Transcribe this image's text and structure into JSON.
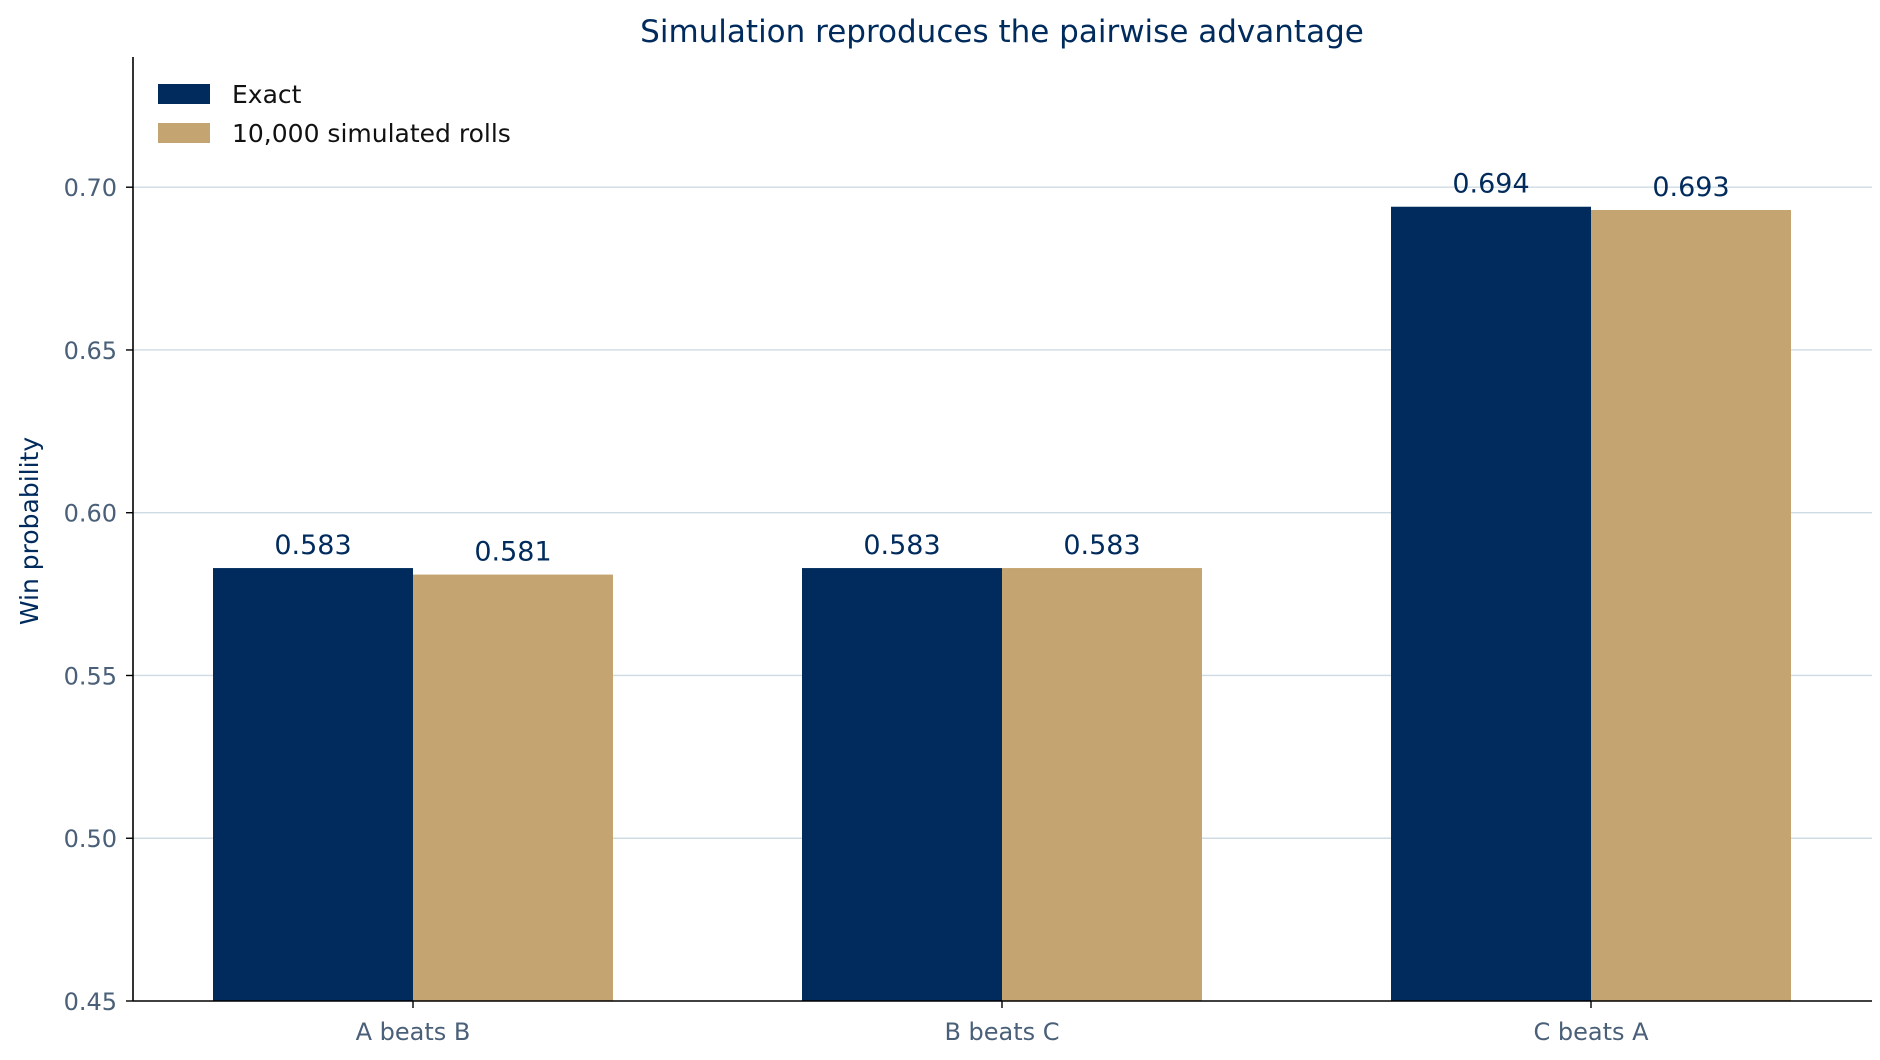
{
  "chart_data": {
    "type": "bar",
    "title": "Simulation reproduces the pairwise advantage",
    "ylabel": "Win probability",
    "xlabel": "",
    "categories": [
      "A beats B",
      "B beats C",
      "C beats A"
    ],
    "series": [
      {
        "name": "Exact",
        "values": [
          0.583,
          0.583,
          0.694
        ],
        "labels": [
          "0.583",
          "0.583",
          "0.694"
        ],
        "color": "#002b5c"
      },
      {
        "name": "10,000 simulated rolls",
        "values": [
          0.581,
          0.583,
          0.693
        ],
        "labels": [
          "0.581",
          "0.583",
          "0.693"
        ],
        "color": "#c4a470"
      }
    ],
    "ylim": [
      0.45,
      0.74
    ],
    "yticks": [
      "0.45",
      "0.50",
      "0.55",
      "0.60",
      "0.65",
      "0.70"
    ],
    "grid": "horizontal",
    "legend_position": "top-left"
  }
}
